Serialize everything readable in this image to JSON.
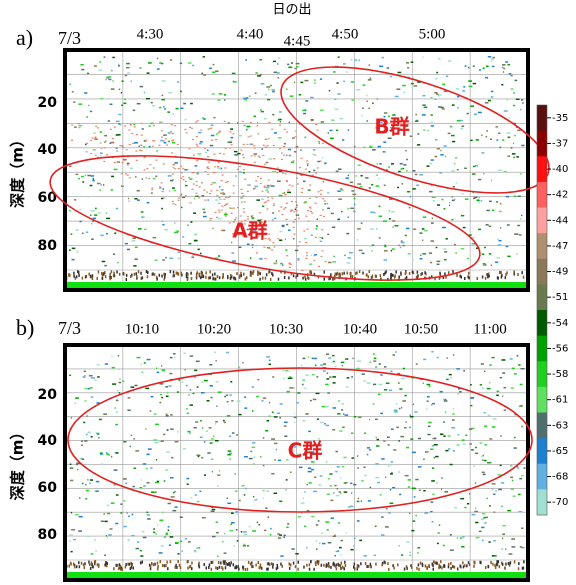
{
  "header": {
    "sunrise": "日の出"
  },
  "panels": [
    {
      "label": "a)",
      "date": "7/3",
      "times": [
        "4:30",
        "4:40",
        "4:45",
        "4:50",
        "5:00"
      ],
      "depth_axis_title": "深度（m）",
      "depth_ticks": [
        "20",
        "40",
        "60",
        "80"
      ],
      "groups": [
        "B群",
        "A群"
      ]
    },
    {
      "label": "b)",
      "date": "7/3",
      "times": [
        "10:10",
        "10:20",
        "10:30",
        "10:40",
        "10:50",
        "11:00"
      ],
      "depth_axis_title": "深度（m）",
      "depth_ticks": [
        "20",
        "40",
        "60",
        "80"
      ],
      "groups": [
        "C群"
      ]
    }
  ],
  "colorbar": {
    "labels": [
      "-35",
      "-37",
      "-40",
      "-42",
      "-44",
      "-47",
      "-49",
      "-51",
      "-54",
      "-56",
      "-58",
      "-61",
      "-63",
      "-65",
      "-68",
      "-70"
    ]
  }
}
